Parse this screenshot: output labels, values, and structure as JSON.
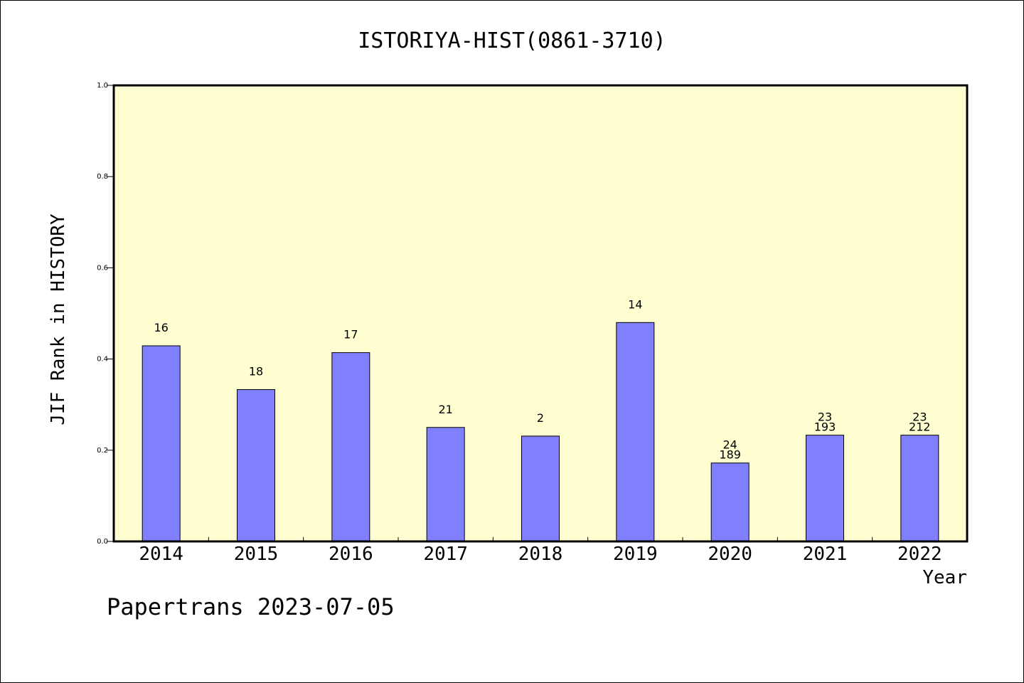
{
  "chart_data": {
    "type": "bar",
    "title": "ISTORIYA-HIST(0861-3710)",
    "xlabel": "Year",
    "ylabel": "JIF Rank in HISTORY",
    "ylim": [
      0,
      1.0
    ],
    "yticks": [
      "0.0",
      "0.2",
      "0.4",
      "0.6",
      "0.8",
      "1.0"
    ],
    "categories": [
      "2014",
      "2015",
      "2016",
      "2017",
      "2018",
      "2019",
      "2020",
      "2021",
      "2022"
    ],
    "values": [
      0.429,
      0.333,
      0.414,
      0.25,
      0.231,
      0.48,
      0.172,
      0.233,
      0.233
    ],
    "labels_top": [
      "16",
      "18",
      "17",
      "21",
      "2",
      "14",
      "24",
      "23",
      "23"
    ],
    "labels_bottom": [
      "",
      "",
      "",
      "",
      "",
      "",
      "189",
      "193",
      "212"
    ],
    "grid": false,
    "plot_background": "#ffffd2",
    "bar_color": "#8080ff"
  },
  "footer": "Papertrans 2023-07-05"
}
